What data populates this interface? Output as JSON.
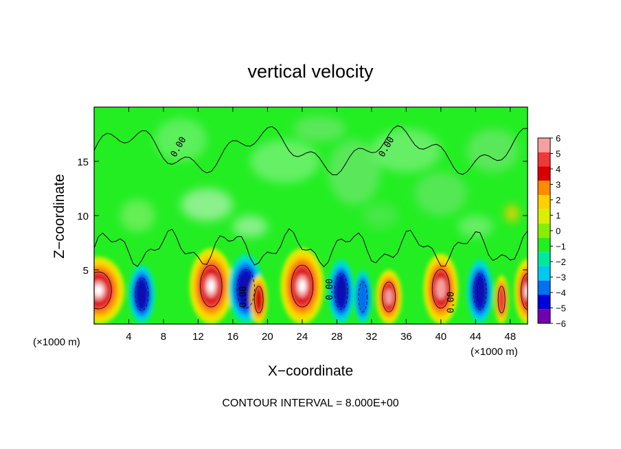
{
  "chart_data": {
    "type": "heatmap",
    "title": "vertical velocity",
    "xlabel": "X−coordinate",
    "ylabel": "Z−coordinate",
    "x_unit_left": "(×1000 m)",
    "x_unit_right": "(×1000 m)",
    "xlim": [
      0,
      50
    ],
    "ylim": [
      0,
      20
    ],
    "x_ticks": [
      4,
      8,
      12,
      16,
      20,
      24,
      28,
      32,
      36,
      40,
      44,
      48
    ],
    "x_tick_labels": [
      "4",
      "8",
      "12",
      "16",
      "20",
      "24",
      "28",
      "32",
      "36",
      "40",
      "44",
      "48"
    ],
    "y_ticks": [
      5,
      10,
      15
    ],
    "y_tick_labels": [
      "5",
      "10",
      "15"
    ],
    "colorbar": {
      "levels": [
        6,
        5,
        4,
        3,
        2,
        1,
        0,
        -1,
        -2,
        -3,
        -4,
        -5,
        -6
      ],
      "labels": [
        "6",
        "5",
        "4",
        "3",
        "2",
        "1",
        "0",
        "−1",
        "−2",
        "−3",
        "−4",
        "−5",
        "−6"
      ],
      "colors": [
        "#f4a0a0",
        "#f03838",
        "#d80000",
        "#ff8c00",
        "#ffd000",
        "#d8f000",
        "#88ee00",
        "#22ee22",
        "#00e8a0",
        "#00c8f0",
        "#0070f0",
        "#0000d8",
        "#7000b0"
      ]
    },
    "contour_label": "0.00",
    "cells": [
      {
        "x_center": 0.5,
        "width": 6,
        "kind": "up",
        "strength": 10,
        "top": 6.2
      },
      {
        "x_center": 5.5,
        "width": 3,
        "kind": "down",
        "strength": 9,
        "top": 5.5
      },
      {
        "x_center": 13.5,
        "width": 5,
        "kind": "up",
        "strength": 10,
        "top": 7.0
      },
      {
        "x_center": 17.5,
        "width": 4,
        "kind": "down",
        "strength": 8,
        "top": 6.5
      },
      {
        "x_center": 19,
        "width": 2,
        "kind": "up",
        "strength": 7,
        "top": 4.5
      },
      {
        "x_center": 24,
        "width": 5,
        "kind": "up",
        "strength": 10,
        "top": 7.0
      },
      {
        "x_center": 28.5,
        "width": 3,
        "kind": "down",
        "strength": 8,
        "top": 6.0
      },
      {
        "x_center": 31,
        "width": 2,
        "kind": "down",
        "strength": 5,
        "top": 5.0
      },
      {
        "x_center": 34,
        "width": 3,
        "kind": "up",
        "strength": 9,
        "top": 5.0
      },
      {
        "x_center": 40,
        "width": 4,
        "kind": "up",
        "strength": 8,
        "top": 6.5
      },
      {
        "x_center": 44.5,
        "width": 3,
        "kind": "down",
        "strength": 9,
        "top": 6.0
      },
      {
        "x_center": 47,
        "width": 1.6,
        "kind": "up",
        "strength": 6,
        "top": 4.5
      },
      {
        "x_center": 50,
        "width": 3,
        "kind": "up",
        "strength": 10,
        "top": 6.0
      }
    ],
    "grid": false,
    "legend": "right colorbar"
  },
  "footer": {
    "contour_interval": "CONTOUR INTERVAL = 8.000E+00"
  }
}
